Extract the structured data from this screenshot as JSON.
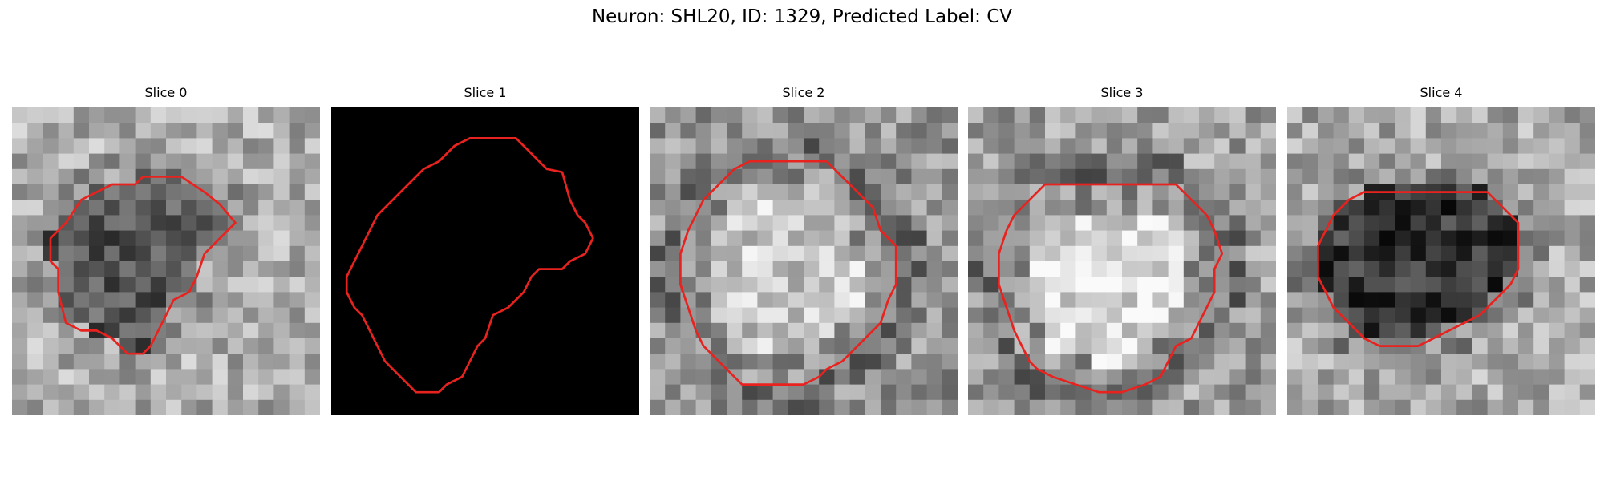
{
  "figure": {
    "title": "Neuron: SHL20, ID: 1329, Predicted Label: CV",
    "contour_color": "#e8231f",
    "colormap": "grayscale"
  },
  "panels": [
    {
      "title": "Slice 0",
      "image": "grayscale-em-patch",
      "contour": [
        [
          11,
          4.5
        ],
        [
          12.5,
          5.5
        ],
        [
          13.5,
          6.3
        ],
        [
          14.5,
          7.5
        ],
        [
          13.5,
          8.5
        ],
        [
          12.5,
          9.5
        ],
        [
          12,
          11
        ],
        [
          11.5,
          12
        ],
        [
          10.5,
          12.5
        ],
        [
          10,
          13.5
        ],
        [
          9.5,
          14.5
        ],
        [
          9,
          15.5
        ],
        [
          8.5,
          16
        ],
        [
          7.5,
          16
        ],
        [
          7,
          15.5
        ],
        [
          6.5,
          15
        ],
        [
          5.5,
          14.5
        ],
        [
          4.5,
          14.5
        ],
        [
          3.5,
          14
        ],
        [
          3,
          12
        ],
        [
          3,
          10.5
        ],
        [
          2.5,
          10
        ],
        [
          2.5,
          8.5
        ],
        [
          3,
          8
        ],
        [
          3.5,
          7.5
        ],
        [
          4.5,
          6
        ],
        [
          5.5,
          5.5
        ],
        [
          6.5,
          5
        ],
        [
          8,
          5
        ],
        [
          8.5,
          4.5
        ],
        [
          10,
          4.5
        ]
      ]
    },
    {
      "title": "Slice 1",
      "image": "black-empty-patch",
      "contour": [
        [
          12,
          2
        ],
        [
          13,
          3
        ],
        [
          14,
          4
        ],
        [
          15,
          4.2
        ],
        [
          15.5,
          6
        ],
        [
          16,
          7
        ],
        [
          16.5,
          7.5
        ],
        [
          17,
          8.5
        ],
        [
          16.5,
          9.5
        ],
        [
          15.5,
          10
        ],
        [
          15,
          10.5
        ],
        [
          13.5,
          10.5
        ],
        [
          13,
          11
        ],
        [
          12.5,
          12
        ],
        [
          12,
          12.5
        ],
        [
          11.5,
          13
        ],
        [
          10.5,
          13.5
        ],
        [
          10,
          15
        ],
        [
          9.5,
          15.5
        ],
        [
          9,
          16.5
        ],
        [
          8.5,
          17.5
        ],
        [
          7.5,
          18
        ],
        [
          7,
          18.5
        ],
        [
          5.5,
          18.5
        ],
        [
          5,
          18
        ],
        [
          4,
          17
        ],
        [
          3.5,
          16.5
        ],
        [
          3,
          15.5
        ],
        [
          2.5,
          14.5
        ],
        [
          2,
          13.5
        ],
        [
          1.5,
          13
        ],
        [
          1,
          12
        ],
        [
          1,
          11
        ],
        [
          1.5,
          10
        ],
        [
          2,
          9
        ],
        [
          2.5,
          8
        ],
        [
          3,
          7
        ],
        [
          4,
          6
        ],
        [
          5,
          5
        ],
        [
          6,
          4
        ],
        [
          7,
          3.5
        ],
        [
          7.5,
          3
        ],
        [
          8,
          2.5
        ],
        [
          9,
          2
        ]
      ]
    },
    {
      "title": "Slice 2",
      "image": "grayscale-em-patch",
      "contour": [
        [
          11.5,
          3.5
        ],
        [
          12.5,
          4.5
        ],
        [
          13,
          5
        ],
        [
          13.5,
          5.5
        ],
        [
          14.5,
          6.5
        ],
        [
          15,
          8
        ],
        [
          16,
          9
        ],
        [
          16,
          11.5
        ],
        [
          15.5,
          12.5
        ],
        [
          15,
          14
        ],
        [
          14.5,
          14.5
        ],
        [
          13.5,
          15.5
        ],
        [
          12.5,
          16.5
        ],
        [
          11.5,
          17
        ],
        [
          11,
          17.5
        ],
        [
          10,
          18
        ],
        [
          8.5,
          18
        ],
        [
          7.5,
          18
        ],
        [
          6,
          18
        ],
        [
          5,
          17
        ],
        [
          4.5,
          16.5
        ],
        [
          4,
          16
        ],
        [
          3.5,
          15.5
        ],
        [
          3,
          14.5
        ],
        [
          2.5,
          13
        ],
        [
          2,
          11.5
        ],
        [
          2,
          9.5
        ],
        [
          2.5,
          8
        ],
        [
          3,
          7
        ],
        [
          3.5,
          6
        ],
        [
          4.5,
          5
        ],
        [
          5.5,
          4
        ],
        [
          6.5,
          3.5
        ],
        [
          8.5,
          3.5
        ]
      ]
    },
    {
      "title": "Slice 3",
      "image": "grayscale-em-patch",
      "contour": [
        [
          13.5,
          5
        ],
        [
          14.5,
          6
        ],
        [
          15.5,
          7
        ],
        [
          16,
          8
        ],
        [
          16.5,
          9.5
        ],
        [
          16,
          10.5
        ],
        [
          16,
          12
        ],
        [
          15.5,
          13
        ],
        [
          15,
          14
        ],
        [
          14.5,
          15
        ],
        [
          13.5,
          15.5
        ],
        [
          13,
          16.5
        ],
        [
          12.5,
          17.5
        ],
        [
          11.5,
          18
        ],
        [
          10,
          18.5
        ],
        [
          8.5,
          18.5
        ],
        [
          7,
          18
        ],
        [
          5.5,
          17.5
        ],
        [
          4.5,
          17
        ],
        [
          4,
          16.5
        ],
        [
          3.5,
          15.5
        ],
        [
          3,
          14.5
        ],
        [
          2.5,
          13
        ],
        [
          2,
          11.5
        ],
        [
          2,
          9.5
        ],
        [
          2.5,
          8
        ],
        [
          3,
          7
        ],
        [
          4,
          6
        ],
        [
          5,
          5
        ],
        [
          7,
          5
        ]
      ]
    },
    {
      "title": "Slice 4",
      "image": "grayscale-em-patch",
      "contour": [
        [
          13,
          5.5
        ],
        [
          14,
          6.5
        ],
        [
          15,
          7.5
        ],
        [
          15,
          10.5
        ],
        [
          14.5,
          11.5
        ],
        [
          13.5,
          12.5
        ],
        [
          12.5,
          13.5
        ],
        [
          11.5,
          14
        ],
        [
          10.5,
          14.5
        ],
        [
          9.5,
          15
        ],
        [
          8.5,
          15.5
        ],
        [
          7,
          15.5
        ],
        [
          6,
          15.5
        ],
        [
          5,
          15
        ],
        [
          4,
          14
        ],
        [
          3,
          13
        ],
        [
          2,
          11
        ],
        [
          2,
          9
        ],
        [
          3,
          7
        ],
        [
          4,
          6
        ],
        [
          5,
          5.5
        ],
        [
          7,
          5.5
        ],
        [
          9,
          5.5
        ]
      ]
    }
  ]
}
